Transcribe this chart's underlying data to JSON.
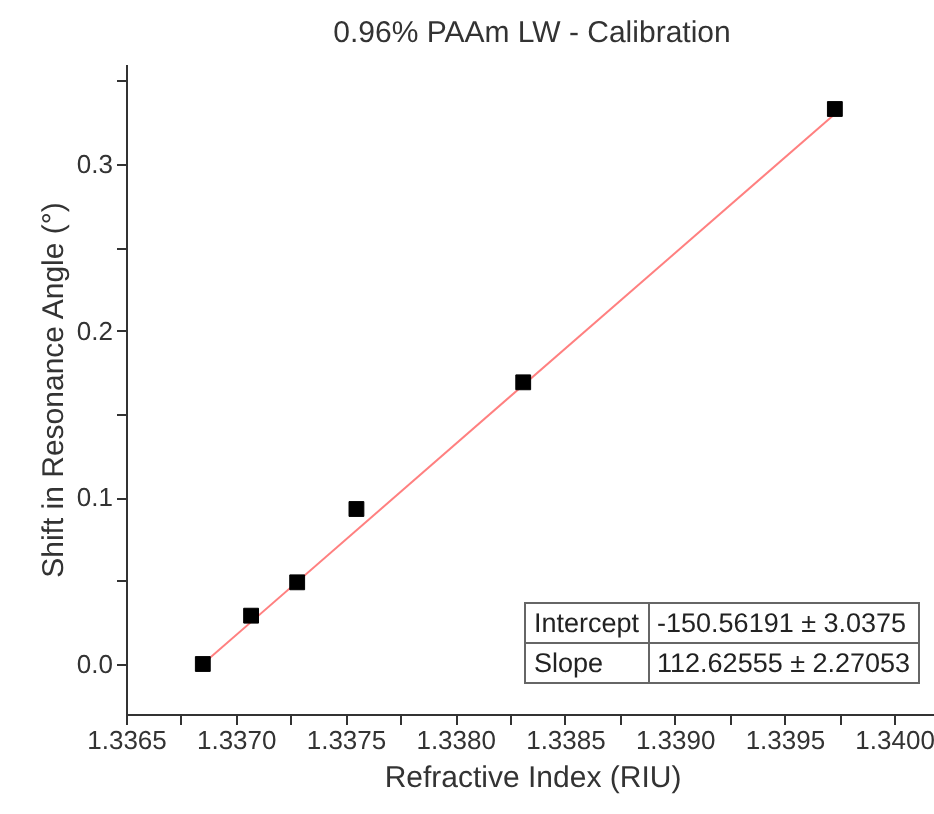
{
  "chart_data": {
    "type": "scatter",
    "title": "0.96% PAAm LW - Calibration",
    "xlabel": "Refractive Index (RIU)",
    "ylabel": "Shift in Resonance Angle (°)",
    "xlim": [
      1.3365,
      1.3402
    ],
    "ylim": [
      -0.03,
      0.36
    ],
    "xticks": [
      {
        "value": 1.3365,
        "label": "1.3365"
      },
      {
        "value": 1.33675,
        "label": null
      },
      {
        "value": 1.337,
        "label": "1.3370"
      },
      {
        "value": 1.33725,
        "label": null
      },
      {
        "value": 1.3375,
        "label": "1.3375"
      },
      {
        "value": 1.33775,
        "label": null
      },
      {
        "value": 1.338,
        "label": "1.3380"
      },
      {
        "value": 1.33825,
        "label": null
      },
      {
        "value": 1.3385,
        "label": "1.3385"
      },
      {
        "value": 1.33875,
        "label": null
      },
      {
        "value": 1.339,
        "label": "1.3390"
      },
      {
        "value": 1.33925,
        "label": null
      },
      {
        "value": 1.3395,
        "label": "1.3395"
      },
      {
        "value": 1.33975,
        "label": null
      },
      {
        "value": 1.34,
        "label": "1.3400"
      }
    ],
    "yticks": [
      {
        "value": 0,
        "label": "0.0"
      },
      {
        "value": 0.05,
        "label": null
      },
      {
        "value": 0.1,
        "label": "0.1"
      },
      {
        "value": 0.15,
        "label": null
      },
      {
        "value": 0.2,
        "label": "0.2"
      },
      {
        "value": 0.25,
        "label": null
      },
      {
        "value": 0.3,
        "label": "0.3"
      },
      {
        "value": 0.35,
        "label": null
      }
    ],
    "grid": false,
    "marker": "square",
    "series": [
      {
        "type": "line",
        "color": "#ff8080",
        "x": [
          1.33685,
          1.33973
        ],
        "values": [
          0.0,
          0.33
        ],
        "marker": "none"
      },
      {
        "color": "#000000",
        "x": [
          1.33685,
          1.33707,
          1.33728,
          1.33755,
          1.33831,
          1.33973
        ],
        "values": [
          0.0,
          0.029,
          0.049,
          0.093,
          0.169,
          0.333
        ]
      }
    ],
    "annotations": [
      "Intercept",
      "-150.56191 ± 3.0375",
      "Slope",
      "112.62555 ± 2.27053"
    ]
  }
}
